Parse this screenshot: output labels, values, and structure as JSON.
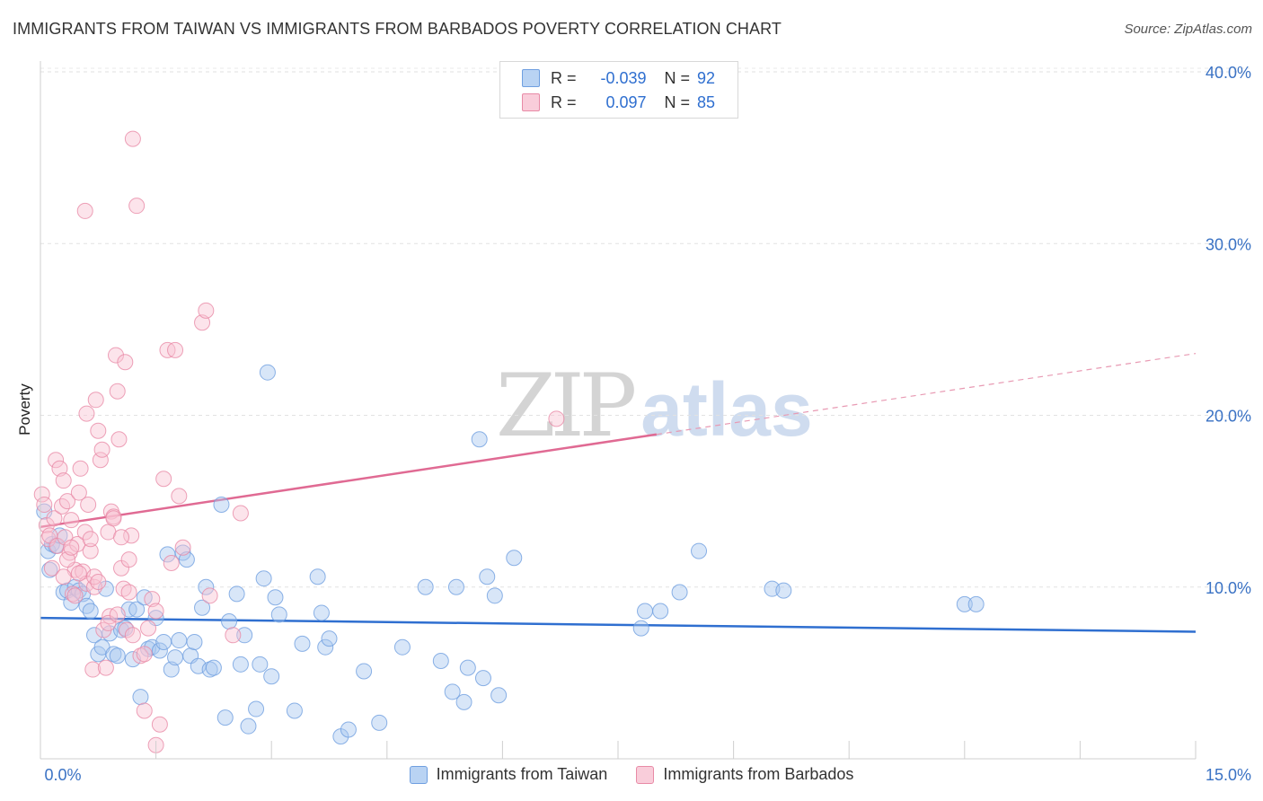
{
  "title": "IMMIGRANTS FROM TAIWAN VS IMMIGRANTS FROM BARBADOS POVERTY CORRELATION CHART",
  "source": "Source: ZipAtlas.com",
  "watermark": {
    "zip": "ZIP",
    "atlas": "atlas"
  },
  "stats": [
    {
      "r_label": "R =",
      "r_value": "-0.039",
      "n_label": "N =",
      "n_value": "92",
      "color": "#a9c8f0",
      "border": "#6f9fe0"
    },
    {
      "r_label": "R =",
      "r_value": "0.097",
      "n_label": "N =",
      "n_value": "85",
      "color": "#f8c3d3",
      "border": "#e88aa6"
    }
  ],
  "chart_data": {
    "type": "scatter",
    "title": "IMMIGRANTS FROM TAIWAN VS IMMIGRANTS FROM BARBADOS POVERTY CORRELATION CHART",
    "xlabel": "",
    "ylabel": "Poverty",
    "xlim": [
      0,
      15
    ],
    "ylim": [
      0,
      40
    ],
    "x_tick_labels": [
      "0.0%",
      "15.0%"
    ],
    "y_ticks": [
      10,
      20,
      30,
      40
    ],
    "y_tick_labels": [
      "10.0%",
      "20.0%",
      "30.0%",
      "40.0%"
    ],
    "legend": [
      "Immigrants from Taiwan",
      "Immigrants from Barbados"
    ],
    "series": [
      {
        "name": "Immigrants from Taiwan",
        "color": "#6f9fe0",
        "fill": "#a9c8f0",
        "trend": {
          "x": [
            0,
            15
          ],
          "y": [
            8.2,
            7.4
          ],
          "solid_to": 15
        },
        "points": [
          [
            0.05,
            14.4
          ],
          [
            0.1,
            12.1
          ],
          [
            0.12,
            11.0
          ],
          [
            0.15,
            12.5
          ],
          [
            0.2,
            12.4
          ],
          [
            0.25,
            13.0
          ],
          [
            0.3,
            9.7
          ],
          [
            0.35,
            9.8
          ],
          [
            0.4,
            9.1
          ],
          [
            0.45,
            10.0
          ],
          [
            0.5,
            9.8
          ],
          [
            0.55,
            9.6
          ],
          [
            0.6,
            8.9
          ],
          [
            0.65,
            8.6
          ],
          [
            0.7,
            7.2
          ],
          [
            0.75,
            6.1
          ],
          [
            0.8,
            6.5
          ],
          [
            0.85,
            9.9
          ],
          [
            0.9,
            7.3
          ],
          [
            0.95,
            6.1
          ],
          [
            1.0,
            6.0
          ],
          [
            1.05,
            7.5
          ],
          [
            1.1,
            7.6
          ],
          [
            1.15,
            8.7
          ],
          [
            1.2,
            5.8
          ],
          [
            1.25,
            8.7
          ],
          [
            1.3,
            3.6
          ],
          [
            1.35,
            9.4
          ],
          [
            1.4,
            6.4
          ],
          [
            1.45,
            6.5
          ],
          [
            1.5,
            8.2
          ],
          [
            1.55,
            6.3
          ],
          [
            1.6,
            6.8
          ],
          [
            1.65,
            11.9
          ],
          [
            1.7,
            5.2
          ],
          [
            1.75,
            5.9
          ],
          [
            1.8,
            6.9
          ],
          [
            1.85,
            12.0
          ],
          [
            1.9,
            11.6
          ],
          [
            1.95,
            6.0
          ],
          [
            2.0,
            6.8
          ],
          [
            2.05,
            5.4
          ],
          [
            2.1,
            8.8
          ],
          [
            2.15,
            10.0
          ],
          [
            2.2,
            5.2
          ],
          [
            2.25,
            5.3
          ],
          [
            2.35,
            14.8
          ],
          [
            2.4,
            2.4
          ],
          [
            2.45,
            8.0
          ],
          [
            2.55,
            9.6
          ],
          [
            2.6,
            5.5
          ],
          [
            2.65,
            7.2
          ],
          [
            2.7,
            1.9
          ],
          [
            2.8,
            2.9
          ],
          [
            2.85,
            5.5
          ],
          [
            2.9,
            10.5
          ],
          [
            2.95,
            22.5
          ],
          [
            3.0,
            4.8
          ],
          [
            3.05,
            9.4
          ],
          [
            3.1,
            8.4
          ],
          [
            3.3,
            2.8
          ],
          [
            3.4,
            6.7
          ],
          [
            3.6,
            10.6
          ],
          [
            3.65,
            8.5
          ],
          [
            3.7,
            6.5
          ],
          [
            3.75,
            7.0
          ],
          [
            3.9,
            1.3
          ],
          [
            4.0,
            1.7
          ],
          [
            4.2,
            5.1
          ],
          [
            4.4,
            2.1
          ],
          [
            4.7,
            6.5
          ],
          [
            5.0,
            10.0
          ],
          [
            5.2,
            5.7
          ],
          [
            5.35,
            3.9
          ],
          [
            5.4,
            10.0
          ],
          [
            5.5,
            3.3
          ],
          [
            5.55,
            5.3
          ],
          [
            5.7,
            18.6
          ],
          [
            5.75,
            4.7
          ],
          [
            5.8,
            10.6
          ],
          [
            5.9,
            9.5
          ],
          [
            5.95,
            3.7
          ],
          [
            6.15,
            11.7
          ],
          [
            7.8,
            7.6
          ],
          [
            7.85,
            8.6
          ],
          [
            8.05,
            8.6
          ],
          [
            8.3,
            9.7
          ],
          [
            8.55,
            12.1
          ],
          [
            9.5,
            9.9
          ],
          [
            9.65,
            9.8
          ],
          [
            12.0,
            9.0
          ],
          [
            12.15,
            9.0
          ]
        ]
      },
      {
        "name": "Immigrants from Barbados",
        "color": "#e88aa6",
        "fill": "#f8c3d3",
        "trend": {
          "x": [
            0,
            15
          ],
          "y": [
            13.5,
            23.6
          ],
          "solid_to": 8.0
        },
        "points": [
          [
            0.02,
            15.4
          ],
          [
            0.05,
            14.8
          ],
          [
            0.08,
            13.6
          ],
          [
            0.1,
            12.8
          ],
          [
            0.12,
            13.0
          ],
          [
            0.15,
            11.1
          ],
          [
            0.18,
            14.0
          ],
          [
            0.2,
            17.4
          ],
          [
            0.22,
            12.4
          ],
          [
            0.25,
            16.9
          ],
          [
            0.28,
            14.7
          ],
          [
            0.3,
            16.2
          ],
          [
            0.32,
            12.9
          ],
          [
            0.35,
            15.0
          ],
          [
            0.38,
            12.0
          ],
          [
            0.4,
            13.9
          ],
          [
            0.42,
            9.6
          ],
          [
            0.45,
            11.0
          ],
          [
            0.48,
            12.5
          ],
          [
            0.5,
            15.5
          ],
          [
            0.52,
            16.9
          ],
          [
            0.55,
            10.9
          ],
          [
            0.58,
            13.2
          ],
          [
            0.6,
            10.2
          ],
          [
            0.62,
            14.8
          ],
          [
            0.65,
            12.1
          ],
          [
            0.68,
            5.2
          ],
          [
            0.7,
            10.0
          ],
          [
            0.72,
            20.9
          ],
          [
            0.75,
            19.1
          ],
          [
            0.78,
            17.4
          ],
          [
            0.8,
            18.0
          ],
          [
            0.82,
            7.5
          ],
          [
            0.85,
            5.3
          ],
          [
            0.88,
            13.2
          ],
          [
            0.9,
            8.3
          ],
          [
            0.92,
            14.4
          ],
          [
            0.95,
            14.1
          ],
          [
            0.98,
            23.5
          ],
          [
            1.0,
            21.4
          ],
          [
            1.02,
            18.6
          ],
          [
            1.05,
            11.1
          ],
          [
            1.08,
            9.9
          ],
          [
            1.1,
            23.1
          ],
          [
            1.12,
            7.5
          ],
          [
            1.15,
            11.6
          ],
          [
            1.18,
            13.0
          ],
          [
            1.2,
            36.1
          ],
          [
            1.25,
            32.2
          ],
          [
            1.3,
            6.0
          ],
          [
            1.35,
            2.8
          ],
          [
            1.4,
            7.6
          ],
          [
            1.45,
            9.3
          ],
          [
            1.5,
            0.8
          ],
          [
            1.55,
            2.0
          ],
          [
            1.6,
            16.3
          ],
          [
            1.65,
            23.8
          ],
          [
            1.7,
            11.4
          ],
          [
            1.75,
            23.8
          ],
          [
            1.8,
            15.3
          ],
          [
            1.85,
            12.3
          ],
          [
            2.1,
            25.4
          ],
          [
            2.15,
            26.1
          ],
          [
            2.2,
            9.5
          ],
          [
            2.5,
            7.2
          ],
          [
            2.6,
            14.3
          ],
          [
            6.7,
            19.8
          ],
          [
            0.58,
            31.9
          ],
          [
            0.6,
            20.1
          ],
          [
            0.65,
            12.8
          ],
          [
            0.7,
            10.6
          ],
          [
            0.75,
            10.3
          ],
          [
            0.88,
            7.9
          ],
          [
            0.95,
            14.0
          ],
          [
            1.0,
            8.4
          ],
          [
            1.05,
            12.9
          ],
          [
            1.15,
            9.7
          ],
          [
            1.2,
            7.2
          ],
          [
            1.35,
            6.1
          ],
          [
            1.5,
            8.6
          ],
          [
            0.3,
            10.6
          ],
          [
            0.35,
            11.6
          ],
          [
            0.4,
            12.3
          ],
          [
            0.45,
            9.5
          ],
          [
            0.5,
            10.8
          ]
        ]
      }
    ]
  }
}
